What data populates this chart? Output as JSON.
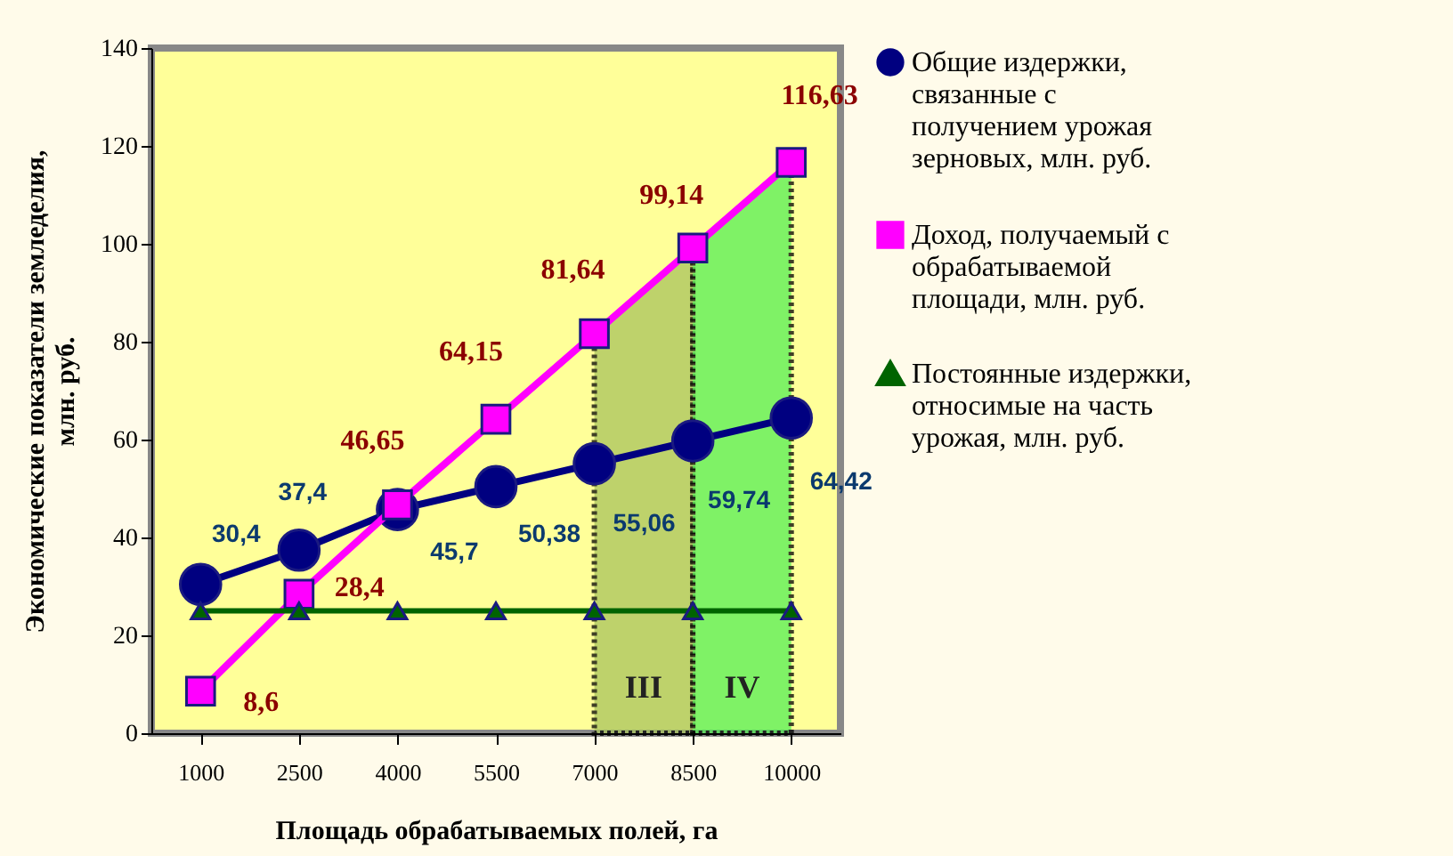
{
  "chart_data": {
    "type": "line",
    "xlabel": "Площадь обрабатываемых полей, га",
    "ylabel": "Экономические показатели земледелия,\nмлн. руб.",
    "categories": [
      "1000",
      "2500",
      "4000",
      "5500",
      "7000",
      "8500",
      "10000"
    ],
    "ylim": [
      0,
      140
    ],
    "yticks": [
      0,
      20,
      40,
      60,
      80,
      100,
      120,
      140
    ],
    "grid": false,
    "legend": "right",
    "series": [
      {
        "name": "Общие издержки,\nсвязанные с\nполучением урожая\nзерновых, млн. руб.",
        "color": "#000080",
        "marker": "circle",
        "values": [
          30.4,
          37.4,
          45.7,
          50.38,
          55.06,
          59.74,
          64.42
        ],
        "value_labels": [
          "30,4",
          "37,4",
          "45,7",
          "50,38",
          "55,06",
          "59,74",
          "64,42"
        ]
      },
      {
        "name": "Доход, получаемый с\nобрабатываемой\nплощади, млн. руб.",
        "color": "#ff00ff",
        "marker": "square",
        "values": [
          8.6,
          28.4,
          46.65,
          64.15,
          81.64,
          99.14,
          116.63
        ],
        "value_labels": [
          "8,6",
          "28,4",
          "46,65",
          "64,15",
          "81,64",
          "99,14",
          "116,63"
        ]
      },
      {
        "name": "Постоянные издержки,\nотносимые на часть\nурожая, млн. руб.",
        "color": "#006400",
        "marker": "triangle",
        "values": [
          25,
          25,
          25,
          25,
          25,
          25,
          25
        ]
      }
    ],
    "bands": [
      {
        "axis": "x",
        "from": "7000",
        "to": "8500",
        "label": "III",
        "color": "#a9c45c"
      },
      {
        "axis": "x",
        "from": "8500",
        "to": "10000",
        "label": "IV",
        "color": "#55ee55"
      }
    ]
  }
}
